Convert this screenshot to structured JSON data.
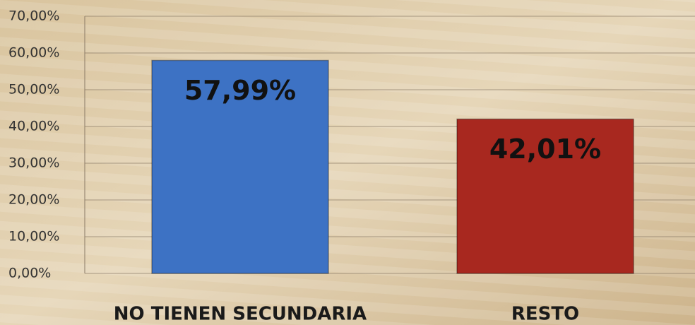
{
  "chart_data": {
    "type": "bar",
    "categories": [
      "NO TIENEN SECUNDARIA",
      "RESTO"
    ],
    "values": [
      57.99,
      42.01
    ],
    "value_labels": [
      "57,99%",
      "42,01%"
    ],
    "colors": [
      "#3d72c4",
      "#a8281f"
    ],
    "ylim": [
      0,
      70
    ],
    "yticks": [
      {
        "value": 0,
        "label": "0,00%"
      },
      {
        "value": 10,
        "label": "10,00%"
      },
      {
        "value": 20,
        "label": "20,00%"
      },
      {
        "value": 30,
        "label": "30,00%"
      },
      {
        "value": 40,
        "label": "40,00%"
      },
      {
        "value": 50,
        "label": "50,00%"
      },
      {
        "value": 60,
        "label": "60,00%"
      },
      {
        "value": 70,
        "label": "70,00%"
      }
    ],
    "grid": true
  }
}
